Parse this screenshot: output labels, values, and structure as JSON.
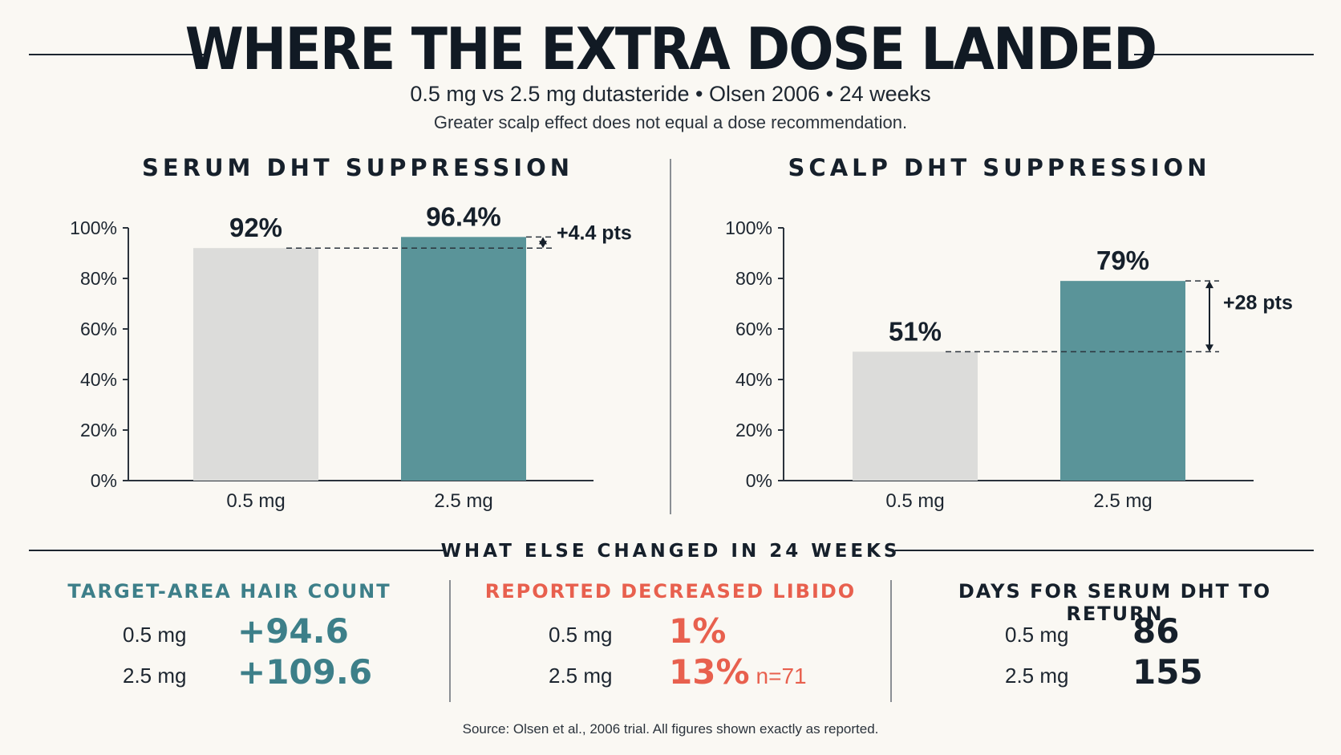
{
  "header": {
    "title": "WHERE THE EXTRA DOSE LANDED",
    "subtitle": "0.5 mg vs 2.5 mg dutasteride • Olsen 2006 • 24 weeks",
    "note": "Greater scalp effect does not equal a dose recommendation."
  },
  "colors": {
    "low_dose": "#dcdcda",
    "high_dose": "#5a9499",
    "teal_text": "#3d7f89",
    "red_text": "#e8604e",
    "ink": "#16202b"
  },
  "chart_data": [
    {
      "type": "bar",
      "title": "SERUM DHT SUPPRESSION",
      "categories": [
        "0.5 mg",
        "2.5 mg"
      ],
      "values": [
        92,
        96.4
      ],
      "value_labels": [
        "92%",
        "96.4%"
      ],
      "difference_label": "+4.4 pts",
      "ylim": [
        0,
        100
      ],
      "yticks": [
        0,
        20,
        40,
        60,
        80,
        100
      ],
      "ytick_labels": [
        "0%",
        "20%",
        "40%",
        "60%",
        "80%",
        "100%"
      ]
    },
    {
      "type": "bar",
      "title": "SCALP DHT SUPPRESSION",
      "categories": [
        "0.5 mg",
        "2.5 mg"
      ],
      "values": [
        51,
        79
      ],
      "value_labels": [
        "51%",
        "79%"
      ],
      "difference_label": "+28 pts",
      "ylim": [
        0,
        100
      ],
      "yticks": [
        0,
        20,
        40,
        60,
        80,
        100
      ],
      "ytick_labels": [
        "0%",
        "20%",
        "40%",
        "60%",
        "80%",
        "100%"
      ]
    }
  ],
  "bottom": {
    "heading": "WHAT ELSE CHANGED IN 24 WEEKS",
    "stats": [
      {
        "title": "TARGET-AREA HAIR COUNT",
        "rows": [
          {
            "label": "0.5 mg",
            "value": "+94.6"
          },
          {
            "label": "2.5 mg",
            "value": "+109.6"
          }
        ]
      },
      {
        "title": "REPORTED DECREASED LIBIDO",
        "rows": [
          {
            "label": "0.5 mg",
            "value": "1%"
          },
          {
            "label": "2.5 mg",
            "value": "13%",
            "note": "n=71"
          }
        ]
      },
      {
        "title": "DAYS FOR SERUM DHT TO RETURN",
        "rows": [
          {
            "label": "0.5 mg",
            "value": "86"
          },
          {
            "label": "2.5 mg",
            "value": "155"
          }
        ]
      }
    ]
  },
  "source": "Source: Olsen et al., 2006 trial. All figures shown exactly as reported."
}
